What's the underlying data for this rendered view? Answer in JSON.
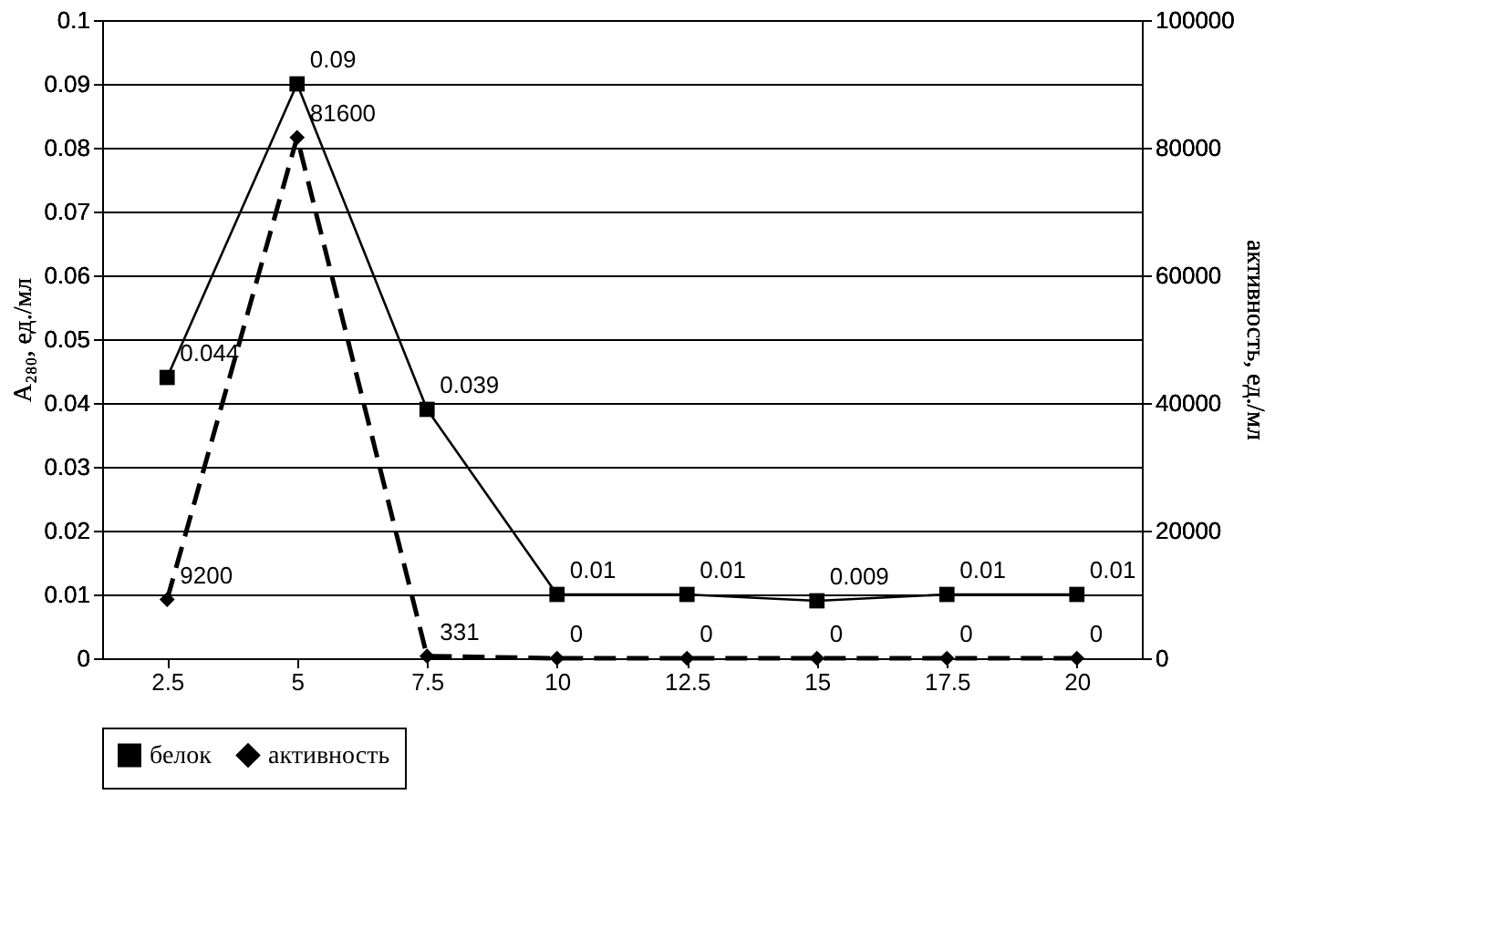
{
  "chart_data": {
    "type": "line",
    "categories": [
      "2.5",
      "5",
      "7.5",
      "10",
      "12.5",
      "15",
      "17.5",
      "20"
    ],
    "ylabel": "A₂₈₀, ед./мл",
    "y2label": "активность, ед./мл",
    "ylim": [
      0,
      0.1
    ],
    "yticks": [
      0,
      0.01,
      0.02,
      0.03,
      0.04,
      0.05,
      0.06,
      0.07,
      0.08,
      0.09,
      0.1
    ],
    "y2lim": [
      0,
      100000
    ],
    "y2ticks": [
      0,
      20000,
      40000,
      60000,
      80000,
      100000
    ],
    "grid": "y",
    "legend": "bottom",
    "data_labels": true,
    "series": [
      {
        "name": "белок",
        "color": "#000000",
        "marker": "square",
        "line_style": "solid",
        "values": [
          0.044,
          0.09,
          0.039,
          0.01,
          0.01,
          0.009,
          0.01,
          0.01
        ]
      },
      {
        "name": "активность",
        "color": "#000000",
        "marker": "diamond",
        "line_style": "dashed",
        "axis": "y2",
        "values": [
          9200,
          81600,
          331,
          0,
          0,
          0,
          0,
          0
        ]
      }
    ]
  }
}
